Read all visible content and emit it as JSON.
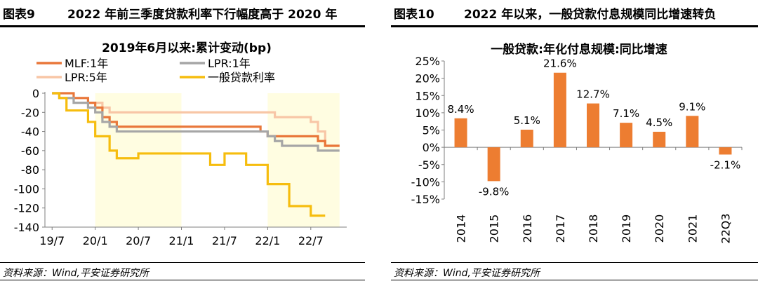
{
  "left_panel": {
    "fig_label": "图表9",
    "fig_title": "2022 年前三季度贷款利率下行幅度高于 2020 年",
    "source": "资料来源：Wind,平安证券研究所"
  },
  "right_panel": {
    "fig_label": "图表10",
    "fig_title": "2022 年以来，一般贷款付息规模同比增速转负",
    "source": "资料来源：Wind,平安证券研究所"
  },
  "chart_data": [
    {
      "type": "line",
      "title": "2019年6月以来:累计变动(bp)",
      "ylim": [
        -140,
        0
      ],
      "yticks": [
        "0",
        "-20",
        "-40",
        "-60",
        "-80",
        "-100",
        "-120",
        "-140"
      ],
      "ytick_values": [
        0,
        -20,
        -40,
        -60,
        -80,
        -100,
        -120,
        -140
      ],
      "xlim_months": [
        0,
        42
      ],
      "xticks": [
        "19/7",
        "20/1",
        "20/7",
        "21/1",
        "21/7",
        "22/1",
        "22/7"
      ],
      "xtick_months": [
        1,
        7,
        13,
        19,
        25,
        31,
        37
      ],
      "shaded_ranges_months": [
        [
          7,
          19
        ],
        [
          31,
          41
        ]
      ],
      "series": [
        {
          "name": "MLF:1年",
          "color": "#E9773A",
          "points": [
            [
              1,
              0
            ],
            [
              4,
              -5
            ],
            [
              6,
              -10
            ],
            [
              7,
              -15
            ],
            [
              8,
              -25
            ],
            [
              9,
              -30
            ],
            [
              10,
              -35
            ],
            [
              29,
              -35
            ],
            [
              30,
              -40
            ],
            [
              31,
              -45
            ],
            [
              37,
              -45
            ],
            [
              38,
              -50
            ],
            [
              39,
              -55
            ],
            [
              41,
              -55
            ]
          ]
        },
        {
          "name": "LPR:1年",
          "color": "#A6A6A6",
          "points": [
            [
              1,
              0
            ],
            [
              2,
              -5
            ],
            [
              4,
              -10
            ],
            [
              5,
              -10
            ],
            [
              6,
              -15
            ],
            [
              7,
              -20
            ],
            [
              8,
              -30
            ],
            [
              9,
              -35
            ],
            [
              10,
              -40
            ],
            [
              30,
              -40
            ],
            [
              31,
              -45
            ],
            [
              32,
              -50
            ],
            [
              33,
              -55
            ],
            [
              37,
              -55
            ],
            [
              38,
              -60
            ],
            [
              41,
              -60
            ]
          ]
        },
        {
          "name": "LPR:5年",
          "color": "#F8C6A6",
          "points": [
            [
              1,
              0
            ],
            [
              2,
              -5
            ],
            [
              4,
              -5
            ],
            [
              5,
              -5
            ],
            [
              6,
              -10
            ],
            [
              7,
              -10
            ],
            [
              8,
              -15
            ],
            [
              9,
              -20
            ],
            [
              31,
              -20
            ],
            [
              32,
              -25
            ],
            [
              36,
              -25
            ],
            [
              37,
              -30
            ],
            [
              38,
              -40
            ],
            [
              39,
              -55
            ],
            [
              41,
              -55
            ]
          ]
        },
        {
          "name": "一般贷款利率",
          "color": "#F6BD0E",
          "points": [
            [
              1,
              0
            ],
            [
              2,
              -5
            ],
            [
              3,
              -18
            ],
            [
              4,
              -18
            ],
            [
              5,
              -18
            ],
            [
              6,
              -30
            ],
            [
              7,
              -45
            ],
            [
              8,
              -45
            ],
            [
              9,
              -60
            ],
            [
              10,
              -68
            ],
            [
              12,
              -68
            ],
            [
              13,
              -63
            ],
            [
              22,
              -63
            ],
            [
              23,
              -75
            ],
            [
              24,
              -75
            ],
            [
              25,
              -63
            ],
            [
              27,
              -63
            ],
            [
              28,
              -75
            ],
            [
              29,
              -75
            ],
            [
              31,
              -95
            ],
            [
              33,
              -95
            ],
            [
              34,
              -118
            ],
            [
              36,
              -118
            ],
            [
              37,
              -128
            ],
            [
              39,
              -128
            ]
          ]
        }
      ]
    },
    {
      "type": "bar",
      "title": "一般贷款:年化付息规模:同比增速",
      "categories": [
        "2014",
        "2015",
        "2016",
        "2017",
        "2018",
        "2019",
        "2020",
        "2021",
        "22Q3"
      ],
      "values": [
        8.4,
        -9.8,
        5.1,
        21.6,
        12.7,
        7.1,
        4.5,
        9.1,
        -2.1
      ],
      "data_labels": [
        "8.4%",
        "-9.8%",
        "5.1%",
        "21.6%",
        "12.7%",
        "7.1%",
        "4.5%",
        "9.1%",
        "-2.1%"
      ],
      "ylim": [
        -15,
        25
      ],
      "yticks": [
        "25%",
        "20%",
        "15%",
        "10%",
        "5%",
        "0%",
        "-5%",
        "-10%",
        "-15%"
      ],
      "ytick_values": [
        25,
        20,
        15,
        10,
        5,
        0,
        -5,
        -10,
        -15
      ],
      "color": "#ED7D31"
    }
  ]
}
